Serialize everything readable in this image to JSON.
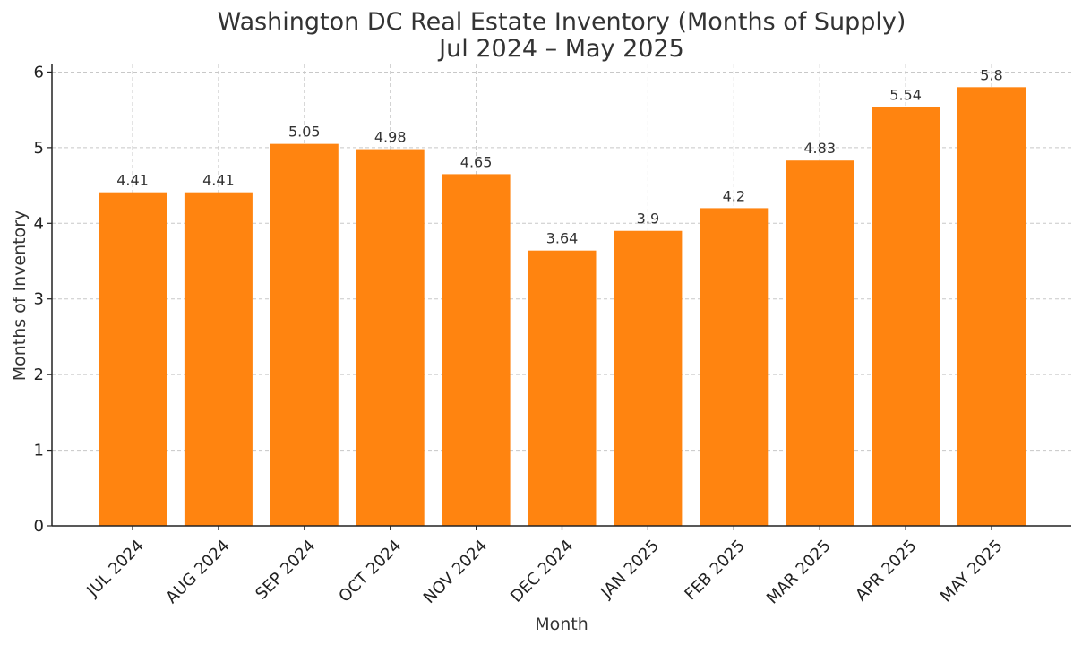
{
  "chart_data": {
    "type": "bar",
    "title": "Washington DC Real Estate Inventory (Months of Supply)",
    "subtitle": "Jul 2024 – May 2025",
    "xlabel": "Month",
    "ylabel": "Months of Inventory",
    "categories": [
      "JUL 2024",
      "AUG 2024",
      "SEP 2024",
      "OCT 2024",
      "NOV 2024",
      "DEC 2024",
      "JAN 2025",
      "FEB 2025",
      "MAR 2025",
      "APR 2025",
      "MAY 2025"
    ],
    "values": [
      4.41,
      4.41,
      5.05,
      4.98,
      4.65,
      3.64,
      3.9,
      4.2,
      4.83,
      5.54,
      5.8
    ],
    "data_labels": [
      "4.41",
      "4.41",
      "5.05",
      "4.98",
      "4.65",
      "3.64",
      "3.9",
      "4.2",
      "4.83",
      "5.54",
      "5.8"
    ],
    "ylim": [
      0,
      6.1
    ],
    "yticks": [
      "0",
      "1",
      "2",
      "3",
      "4",
      "5",
      "6"
    ],
    "grid": true,
    "bar_color": "#ff8410"
  }
}
